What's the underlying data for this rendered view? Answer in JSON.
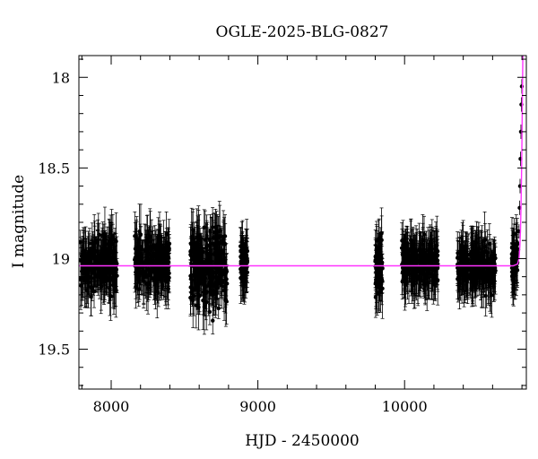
{
  "chart_data": {
    "type": "scatter",
    "title": "OGLE-2025-BLG-0827",
    "xlabel": "HJD - 2450000",
    "ylabel": "I magnitude",
    "xlim": [
      7780,
      10830
    ],
    "ylim": [
      19.72,
      17.88
    ],
    "y_inverted": true,
    "x_ticks": [
      8000,
      9000,
      10000
    ],
    "y_ticks": [
      18,
      18.5,
      19,
      19.5
    ],
    "grid": false,
    "series": [
      {
        "style": "points-with-errorbars",
        "color": "#000000",
        "segments": [
          {
            "x": [
              7790,
              8040
            ],
            "mean": 19.03,
            "scatter": 0.16
          },
          {
            "x": [
              8160,
              8400
            ],
            "mean": 19.02,
            "scatter": 0.15
          },
          {
            "x": [
              8540,
              8790
            ],
            "mean": 19.05,
            "scatter": 0.22
          },
          {
            "x": [
              8880,
              8930
            ],
            "mean": 19.03,
            "scatter": 0.11
          },
          {
            "x": [
              9800,
              9850
            ],
            "mean": 19.05,
            "scatter": 0.17
          },
          {
            "x": [
              9980,
              10230
            ],
            "mean": 19.03,
            "scatter": 0.12
          },
          {
            "x": [
              10360,
              10620
            ],
            "mean": 19.04,
            "scatter": 0.12
          },
          {
            "x": [
              10730,
              10770
            ],
            "mean": 19.02,
            "scatter": 0.11
          }
        ],
        "rise": [
          [
            10775,
            18.95
          ],
          [
            10780,
            18.85
          ],
          [
            10784,
            18.72
          ],
          [
            10787,
            18.6
          ],
          [
            10790,
            18.45
          ],
          [
            10793,
            18.3
          ],
          [
            10796,
            18.15
          ],
          [
            10799,
            18.05
          ]
        ]
      },
      {
        "style": "model-line",
        "color": "#ff33ff",
        "points": [
          [
            7780,
            19.04
          ],
          [
            10740,
            19.04
          ],
          [
            10770,
            19.03
          ],
          [
            10780,
            19.0
          ],
          [
            10786,
            18.93
          ],
          [
            10790,
            18.84
          ],
          [
            10794,
            18.7
          ],
          [
            10797,
            18.55
          ],
          [
            10800,
            18.35
          ],
          [
            10803,
            18.1
          ],
          [
            10806,
            17.88
          ]
        ]
      }
    ]
  }
}
